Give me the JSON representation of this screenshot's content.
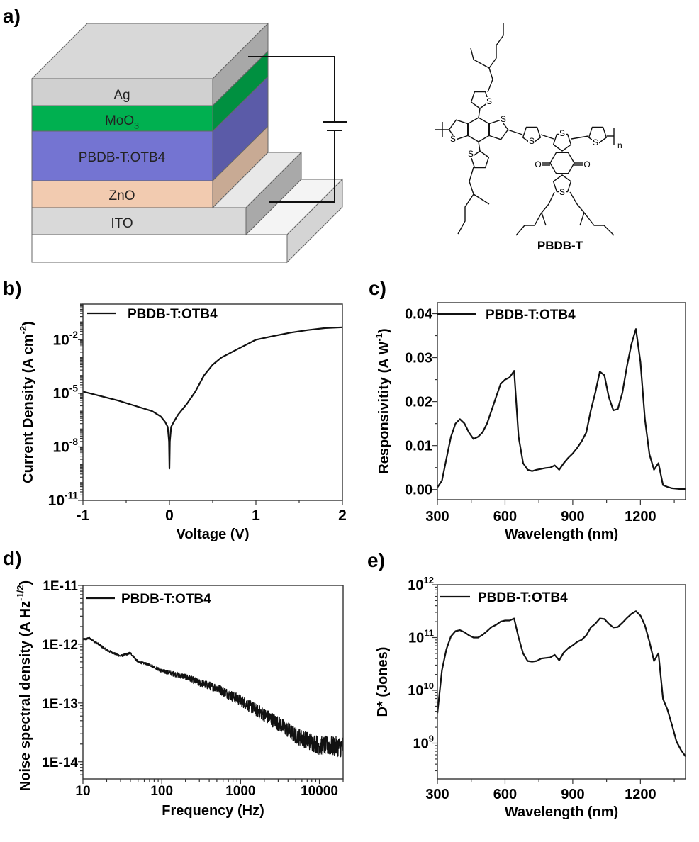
{
  "panels": {
    "a": "a)",
    "b": "b)",
    "c": "c)",
    "d": "d)",
    "e": "e)"
  },
  "device": {
    "layers": [
      "Ag",
      "MoO_{3}",
      "PBDB-T:OTB4",
      "ZnO",
      "ITO"
    ],
    "colors": {
      "Ag": "#d0d0d0",
      "MoO3": "#00b050",
      "active": "#7474d2",
      "ZnO": "#f2cbb0",
      "ITO": "#d9d9d9",
      "substrate": "#ffffff"
    }
  },
  "structure": {
    "name": "PBDB-T",
    "sulfur": "S",
    "oxygen": "O",
    "repeat_unit": "n"
  },
  "chart_data": [
    {
      "panel": "b",
      "type": "line",
      "xlabel": "Voltage (V)",
      "ylabel": "Current Density (A cm^{-2})",
      "xscale": "linear",
      "yscale": "log",
      "xlim": [
        -1,
        2
      ],
      "ylim": [
        1e-11,
        1
      ],
      "xticks": [
        -1,
        0,
        1,
        2
      ],
      "xtick_labels": [
        "-1",
        "0",
        "1",
        "2"
      ],
      "yticks": [
        1e-11,
        1e-08,
        1e-05,
        0.01
      ],
      "ytick_labels": [
        "10^{-11}",
        "10^{-8}",
        "10^{-5}",
        "10^{-2}"
      ],
      "legend": "PBDB-T:OTB4",
      "legend_position": "top-left",
      "series": [
        {
          "name": "PBDB-T:OTB4",
          "x": [
            -1,
            -0.8,
            -0.6,
            -0.4,
            -0.2,
            -0.1,
            -0.05,
            -0.02,
            -0.005,
            0,
            0.005,
            0.02,
            0.05,
            0.1,
            0.2,
            0.3,
            0.4,
            0.5,
            0.6,
            0.8,
            1.0,
            1.2,
            1.4,
            1.6,
            1.8,
            2.0
          ],
          "y": [
            1.26e-05,
            7.1e-06,
            4e-06,
            2e-06,
            1e-06,
            5e-07,
            2.5e-07,
            1.3e-07,
            2e-08,
            6e-10,
            2e-08,
            1.3e-07,
            2.5e-07,
            6.3e-07,
            2.5e-06,
            1.26e-05,
            0.0001,
            0.0004,
            0.001,
            0.0032,
            0.01,
            0.016,
            0.025,
            0.035,
            0.045,
            0.05
          ]
        }
      ]
    },
    {
      "panel": "c",
      "type": "line",
      "xlabel": "Wavelength (nm)",
      "ylabel": "Responsivitity (A W^{-1})",
      "xscale": "linear",
      "yscale": "linear",
      "xlim": [
        300,
        1400
      ],
      "ylim": [
        -0.0023,
        0.0425
      ],
      "xticks": [
        300,
        600,
        900,
        1200
      ],
      "xtick_labels": [
        "300",
        "600",
        "900",
        "1200"
      ],
      "yticks": [
        0,
        0.01,
        0.02,
        0.03,
        0.04
      ],
      "ytick_labels": [
        "0.00",
        "0.01",
        "0.02",
        "0.03",
        "0.04"
      ],
      "legend": "PBDB-T:OTB4",
      "legend_position": "top-left",
      "series": [
        {
          "name": "PBDB-T:OTB4",
          "x": [
            300,
            320,
            340,
            360,
            380,
            400,
            420,
            440,
            460,
            480,
            500,
            520,
            540,
            560,
            580,
            600,
            620,
            640,
            660,
            680,
            700,
            720,
            740,
            760,
            780,
            800,
            820,
            840,
            860,
            880,
            900,
            920,
            940,
            960,
            980,
            1000,
            1020,
            1040,
            1060,
            1080,
            1100,
            1120,
            1140,
            1160,
            1180,
            1200,
            1220,
            1240,
            1260,
            1280,
            1300,
            1320,
            1340,
            1360,
            1380,
            1400
          ],
          "y": [
            0.0005,
            0.002,
            0.007,
            0.012,
            0.015,
            0.016,
            0.015,
            0.013,
            0.0115,
            0.012,
            0.013,
            0.015,
            0.018,
            0.021,
            0.024,
            0.025,
            0.0255,
            0.027,
            0.012,
            0.006,
            0.0045,
            0.0042,
            0.0045,
            0.0047,
            0.0049,
            0.005,
            0.0055,
            0.0045,
            0.006,
            0.0072,
            0.0082,
            0.0095,
            0.011,
            0.013,
            0.018,
            0.022,
            0.0268,
            0.026,
            0.021,
            0.018,
            0.0183,
            0.022,
            0.028,
            0.033,
            0.0365,
            0.029,
            0.016,
            0.008,
            0.0045,
            0.006,
            0.001,
            0.0006,
            0.0003,
            0.0002,
            0.0001,
            0.0001
          ]
        }
      ]
    },
    {
      "panel": "d",
      "type": "line",
      "xlabel": "Frequency (Hz)",
      "ylabel": "Noise spectral density (A Hz^{-1/2})",
      "xscale": "log",
      "yscale": "log",
      "xlim": [
        10,
        20000
      ],
      "ylim": [
        5.1e-15,
        1e-11
      ],
      "xticks": [
        10,
        100,
        1000,
        10000
      ],
      "xtick_labels": [
        "10",
        "100",
        "1000",
        "10000"
      ],
      "yticks": [
        1e-11,
        1e-12,
        1e-13,
        1e-14
      ],
      "ytick_labels": [
        "1E-11",
        "1E-12",
        "1E-13",
        "1E-14"
      ],
      "legend": "PBDB-T:OTB4",
      "legend_position": "top-left",
      "series": [
        {
          "name": "PBDB-T:OTB4",
          "x": [
            10,
            12,
            15,
            20,
            30,
            40,
            50,
            70,
            100,
            200,
            300,
            500,
            1000,
            2000,
            3000,
            5000,
            10000,
            20000
          ],
          "y": [
            1.2e-12,
            1.26e-12,
            1.05e-12,
            7.9e-13,
            6.3e-13,
            7.1e-13,
            5e-13,
            4.5e-13,
            3.5e-13,
            2.8e-13,
            2.2e-13,
            1.8e-13,
            1.1e-13,
            6.3e-14,
            4.5e-14,
            2.8e-14,
            1.9e-14,
            1.8e-14
          ]
        }
      ]
    },
    {
      "panel": "e",
      "type": "line",
      "xlabel": "Wavelength (nm)",
      "ylabel": "D* (Jones)",
      "xscale": "linear",
      "yscale": "log",
      "xlim": [
        300,
        1400
      ],
      "ylim": [
        210000000.0,
        1000000000000.0
      ],
      "xticks": [
        300,
        600,
        900,
        1200
      ],
      "xtick_labels": [
        "300",
        "600",
        "900",
        "1200"
      ],
      "yticks": [
        1000000000.0,
        10000000000.0,
        100000000000.0,
        1000000000000.0
      ],
      "ytick_labels": [
        "10^{9}",
        "10^{10}",
        "10^{11}",
        "10^{12}"
      ],
      "legend": "PBDB-T:OTB4",
      "legend_position": "top-left",
      "series": [
        {
          "name": "PBDB-T:OTB4",
          "x": [
            300,
            320,
            340,
            360,
            380,
            400,
            420,
            440,
            460,
            480,
            500,
            520,
            540,
            560,
            580,
            600,
            620,
            640,
            660,
            680,
            700,
            720,
            740,
            760,
            780,
            800,
            820,
            840,
            860,
            880,
            900,
            920,
            940,
            960,
            980,
            1000,
            1020,
            1040,
            1060,
            1080,
            1100,
            1120,
            1140,
            1160,
            1180,
            1200,
            1220,
            1240,
            1260,
            1280,
            1300,
            1320,
            1340,
            1360,
            1380,
            1400
          ],
          "y": [
            3700000000.0,
            24000000000.0,
            60000000000.0,
            105000000000.0,
            132000000000.0,
            138000000000.0,
            126000000000.0,
            110000000000.0,
            100000000000.0,
            100000000000.0,
            112000000000.0,
            132000000000.0,
            158000000000.0,
            174000000000.0,
            200000000000.0,
            210000000000.0,
            210000000000.0,
            230000000000.0,
            100000000000.0,
            50000000000.0,
            36000000000.0,
            35000000000.0,
            36000000000.0,
            40000000000.0,
            41000000000.0,
            42000000000.0,
            47000000000.0,
            37000000000.0,
            52000000000.0,
            63000000000.0,
            71000000000.0,
            83000000000.0,
            91000000000.0,
            110000000000.0,
            155000000000.0,
            182000000000.0,
            230000000000.0,
            224000000000.0,
            182000000000.0,
            155000000000.0,
            158000000000.0,
            190000000000.0,
            234000000000.0,
            280000000000.0,
            316000000000.0,
            260000000000.0,
            170000000000.0,
            83000000000.0,
            36000000000.0,
            50000000000.0,
            6900000000.0,
            4300000000.0,
            2200000000.0,
            1070000000.0,
            740000000.0,
            560000000.0
          ]
        }
      ]
    }
  ]
}
